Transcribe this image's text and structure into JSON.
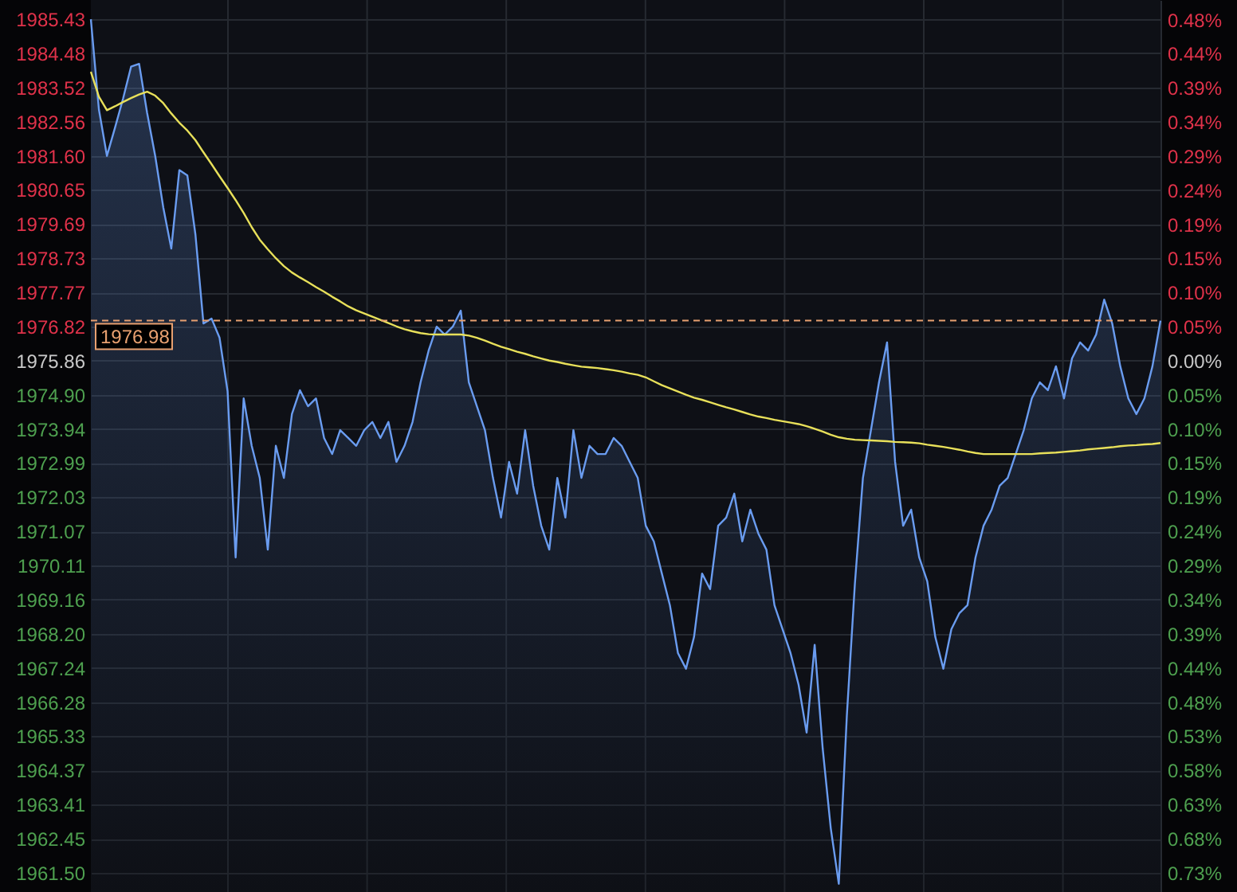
{
  "chart_data": {
    "type": "line",
    "categories": [
      null,
      null,
      null,
      null,
      null,
      null,
      null,
      null,
      null,
      null,
      null,
      null,
      null,
      null,
      null,
      null,
      null,
      null,
      null,
      null,
      null,
      null,
      null,
      null,
      null,
      null,
      null,
      null,
      null,
      null,
      null,
      null,
      null,
      null,
      null,
      null,
      null,
      null,
      null,
      null,
      null,
      null,
      null,
      null,
      null,
      null,
      null,
      null,
      null,
      null,
      null,
      null,
      null,
      null,
      null,
      null,
      null,
      null,
      null,
      null,
      null,
      null,
      null,
      null,
      null,
      null,
      null,
      null,
      null,
      null,
      null,
      null,
      null,
      null,
      null,
      null,
      null,
      null,
      null,
      null,
      null,
      null,
      null,
      null,
      null,
      null,
      null,
      null,
      null,
      null,
      null,
      null,
      null,
      null,
      null,
      null,
      null,
      null,
      null,
      null,
      null,
      null,
      null,
      null,
      null,
      null,
      null,
      null,
      null,
      null,
      null,
      null,
      null,
      null,
      null,
      null,
      null,
      null,
      null,
      null,
      null,
      null,
      null,
      null,
      null,
      null,
      null,
      null,
      null,
      null,
      null,
      null,
      null,
      null
    ],
    "ylim": [
      1960.96,
      1985.97
    ],
    "yticks": [
      1985.43,
      1984.48,
      1983.52,
      1982.56,
      {
        "value": 1981.6,
        "label": "1981.60"
      },
      1980.65,
      1979.69,
      1978.73,
      1977.77,
      1976.82,
      1975.86,
      {
        "value": 1974.9,
        "label": "1974.90"
      },
      1973.94,
      1972.99,
      1972.03,
      1971.07,
      1970.11,
      1969.16,
      {
        "value": 1968.2,
        "label": "1968.20"
      },
      1967.24,
      1966.28,
      1965.33,
      1964.37,
      1963.41,
      1962.45,
      {
        "value": 1961.5,
        "label": "1961.50"
      }
    ],
    "y2lim": [
      -0.754,
      0.512
    ],
    "y2ticks": [
      {
        "value": 0.4843,
        "label": "0.48%"
      },
      {
        "value": 0.4363,
        "label": "0.44%"
      },
      {
        "value": 0.3877,
        "label": "0.39%"
      },
      {
        "value": 0.3391,
        "label": "0.34%"
      },
      {
        "value": 0.2905,
        "label": "0.29%"
      },
      {
        "value": 0.2424,
        "label": "0.24%"
      },
      {
        "value": 0.1938,
        "label": "0.19%"
      },
      {
        "value": 0.1453,
        "label": "0.15%"
      },
      {
        "value": 0.0967,
        "label": "0.10%"
      },
      {
        "value": 0.0486,
        "label": "0.05%"
      },
      {
        "value": 0,
        "label": "0.00%"
      },
      {
        "value": -0.0486,
        "label": "0.05%"
      },
      {
        "value": -0.0972,
        "label": "0.10%"
      },
      {
        "value": -0.1453,
        "label": "0.15%"
      },
      {
        "value": -0.1938,
        "label": "0.19%"
      },
      {
        "value": -0.2424,
        "label": "0.24%"
      },
      {
        "value": -0.291,
        "label": "0.29%"
      },
      {
        "value": -0.3391,
        "label": "0.34%"
      },
      {
        "value": -0.3877,
        "label": "0.39%"
      },
      {
        "value": -0.4363,
        "label": "0.44%"
      },
      {
        "value": -0.4848,
        "label": "0.48%"
      },
      {
        "value": -0.5329,
        "label": "0.53%"
      },
      {
        "value": -0.5815,
        "label": "0.58%"
      },
      {
        "value": -0.6301,
        "label": "0.63%"
      },
      {
        "value": -0.6787,
        "label": "0.68%"
      },
      {
        "value": -0.7268,
        "label": "0.73%"
      }
    ],
    "tick_labels": "y",
    "grid": true,
    "series": [
      {
        "type": "area",
        "color": "#6a9cf0",
        "values": [
          1985.43,
          1982.9,
          1981.6,
          1982.39,
          1983.2,
          1984.1,
          1984.18,
          1982.8,
          1981.6,
          1980.16,
          1979.0,
          1981.2,
          1981.05,
          1979.4,
          1976.9,
          1977.04,
          1976.5,
          1975.0,
          1970.34,
          1974.8,
          1973.47,
          1972.57,
          1970.56,
          1973.47,
          1972.57,
          1974.36,
          1975.03,
          1974.58,
          1974.8,
          1973.69,
          1973.24,
          1973.91,
          1973.69,
          1973.47,
          1973.91,
          1974.14,
          1973.69,
          1974.14,
          1973.02,
          1973.47,
          1974.14,
          1975.25,
          1976.14,
          1976.81,
          1976.59,
          1976.81,
          1977.26,
          1975.25,
          1974.58,
          1973.91,
          1972.57,
          1971.46,
          1973.02,
          1972.13,
          1973.91,
          1972.35,
          1971.23,
          1970.56,
          1972.57,
          1971.46,
          1973.91,
          1972.57,
          1973.47,
          1973.24,
          1973.24,
          1973.69,
          1973.47,
          1973.02,
          1972.57,
          1971.23,
          1970.79,
          1969.89,
          1969.0,
          1967.66,
          1967.22,
          1968.11,
          1969.89,
          1969.45,
          1971.23,
          1971.46,
          1972.13,
          1970.79,
          1971.68,
          1971.01,
          1970.56,
          1969.0,
          1968.33,
          1967.66,
          1966.77,
          1965.43,
          1967.89,
          1964.98,
          1962.75,
          1961.19,
          1965.9,
          1969.6,
          1972.57,
          1973.91,
          1975.25,
          1976.37,
          1973.02,
          1971.23,
          1971.68,
          1970.34,
          1969.67,
          1968.11,
          1967.22,
          1968.33,
          1968.78,
          1969.0,
          1970.34,
          1971.23,
          1971.68,
          1972.35,
          1972.57,
          1973.24,
          1973.91,
          1974.8,
          1975.25,
          1975.03,
          1975.7,
          1974.8,
          1975.92,
          1976.37,
          1976.14,
          1976.59,
          1977.57,
          1976.9,
          1975.7,
          1974.8,
          1974.36,
          1974.8,
          1975.7,
          1976.98
        ]
      },
      {
        "color": "#e8e05a",
        "values": [
          1983.96,
          1983.26,
          1982.88,
          1982.99,
          1983.11,
          1983.22,
          1983.32,
          1983.4,
          1983.29,
          1983.08,
          1982.79,
          1982.53,
          1982.31,
          1982.04,
          1981.7,
          1981.37,
          1981.03,
          1980.7,
          1980.36,
          1980.0,
          1979.6,
          1979.25,
          1978.98,
          1978.73,
          1978.51,
          1978.33,
          1978.19,
          1978.06,
          1977.92,
          1977.79,
          1977.65,
          1977.52,
          1977.38,
          1977.27,
          1977.18,
          1977.09,
          1977.0,
          1976.91,
          1976.82,
          1976.74,
          1976.68,
          1976.63,
          1976.6,
          1976.59,
          1976.59,
          1976.59,
          1976.59,
          1976.56,
          1976.5,
          1976.42,
          1976.33,
          1976.25,
          1976.18,
          1976.11,
          1976.05,
          1975.98,
          1975.92,
          1975.86,
          1975.82,
          1975.77,
          1975.73,
          1975.69,
          1975.67,
          1975.65,
          1975.62,
          1975.59,
          1975.55,
          1975.5,
          1975.46,
          1975.39,
          1975.28,
          1975.17,
          1975.08,
          1974.99,
          1974.9,
          1974.82,
          1974.76,
          1974.69,
          1974.62,
          1974.55,
          1974.49,
          1974.42,
          1974.35,
          1974.29,
          1974.25,
          1974.2,
          1974.16,
          1974.12,
          1974.08,
          1974.02,
          1973.95,
          1973.87,
          1973.78,
          1973.71,
          1973.67,
          1973.64,
          1973.63,
          1973.62,
          1973.61,
          1973.6,
          1973.58,
          1973.57,
          1973.56,
          1973.54,
          1973.5,
          1973.47,
          1973.44,
          1973.4,
          1973.36,
          1973.31,
          1973.27,
          1973.24,
          1973.24,
          1973.24,
          1973.24,
          1973.24,
          1973.24,
          1973.24,
          1973.26,
          1973.27,
          1973.28,
          1973.3,
          1973.32,
          1973.34,
          1973.37,
          1973.39,
          1973.41,
          1973.43,
          1973.46,
          1973.48,
          1973.49,
          1973.51,
          1973.52,
          1973.55
        ]
      }
    ],
    "ref_lines": [
      {
        "axis": "y",
        "value": 1976.98,
        "color": "#e8a070",
        "line_style": "dashed"
      }
    ],
    "annotations": [
      {
        "text": "1976.98",
        "y": 1976.98
      }
    ]
  }
}
